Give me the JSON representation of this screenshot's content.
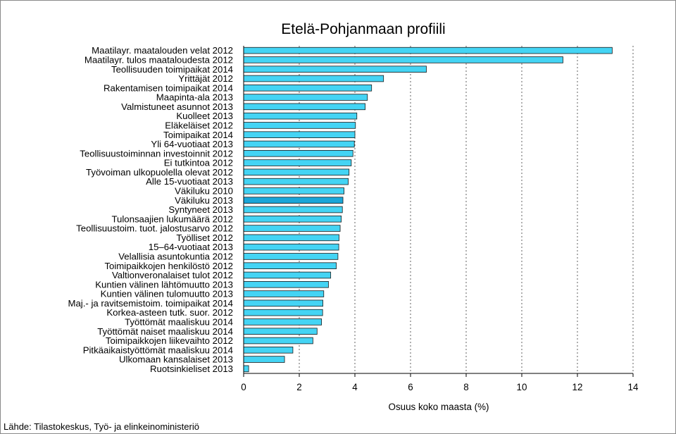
{
  "chart_data": {
    "type": "bar",
    "orientation": "horizontal",
    "title": "Etelä-Pohjanmaan profiili",
    "xlabel": "Osuus koko maasta (%)",
    "ylabel": "",
    "xlim": [
      0,
      14
    ],
    "xticks": [
      0,
      2,
      4,
      6,
      8,
      10,
      12,
      14
    ],
    "grid": "vertical dotted",
    "highlight_category": "Väkiluku 2013",
    "colors": {
      "bar": "#44d4f4",
      "highlight": "#1aa6d8",
      "edge": "#1a1a1a",
      "grid": "#606060"
    },
    "categories": [
      "Maatilayr. maatalouden velat 2012",
      "Maatilayr. tulos maataloudesta 2012",
      "Teollisuuden toimipaikat 2014",
      "Yrittäjät 2012",
      "Rakentamisen toimipaikat 2014",
      "Maapinta-ala 2013",
      "Valmistuneet asunnot 2013",
      "Kuolleet 2013",
      "Eläkeläiset 2012",
      "Toimipaikat 2014",
      "Yli 64-vuotiaat 2013",
      "Teollisuustoiminnan investoinnit 2012",
      "Ei tutkintoa 2012",
      "Työvoiman ulkopuolella olevat 2012",
      "Alle 15-vuotiaat 2013",
      "Väkiluku 2010",
      "Väkiluku 2013",
      "Syntyneet 2013",
      "Tulonsaajien lukumäärä 2012",
      "Teollisuustoim. tuot. jalostusarvo 2012",
      "Työlliset 2012",
      "15–64-vuotiaat 2013",
      "Velallisia asuntokuntia 2012",
      "Toimipaikkojen henkilöstö 2012",
      "Valtionveronalaiset tulot 2012",
      "Kuntien välinen lähtömuutto 2013",
      "Kuntien välinen tulomuutto 2013",
      "Maj.- ja ravitsemistoim. toimipaikat 2014",
      "Korkea-asteen tutk. suor. 2012",
      "Työttömät maaliskuu 2014",
      "Työttömät naiset maaliskuu 2014",
      "Toimipaikkojen liikevaihto 2012",
      "Pitkäaikaistyöttömät maaliskuu 2014",
      "Ulkomaan kansalaiset 2013",
      "Ruotsinkieliset 2013"
    ],
    "values": [
      13.25,
      11.48,
      6.57,
      5.03,
      4.6,
      4.45,
      4.37,
      4.07,
      4.02,
      4.0,
      3.98,
      3.93,
      3.87,
      3.79,
      3.76,
      3.61,
      3.57,
      3.55,
      3.51,
      3.47,
      3.43,
      3.42,
      3.39,
      3.33,
      3.13,
      3.05,
      2.88,
      2.85,
      2.84,
      2.8,
      2.64,
      2.49,
      1.77,
      1.47,
      0.18
    ]
  },
  "source": "Lähde: Tilastokeskus, Työ- ja elinkeinoministeriö"
}
